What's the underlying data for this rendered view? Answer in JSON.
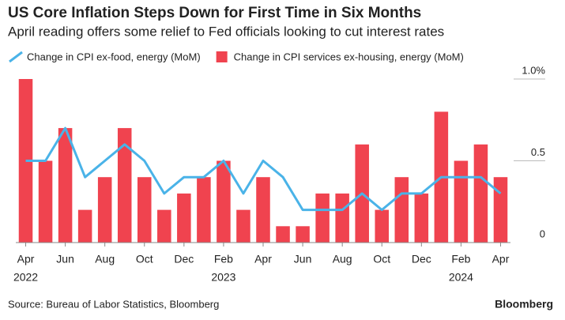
{
  "chart_data": {
    "type": "combo",
    "title": "US Core Inflation Steps Down for First Time in Six Months",
    "subtitle": "April reading offers some relief to Fed officials looking to cut interest rates",
    "source": "Source: Bureau of Labor Statistics, Bloomberg",
    "brand": "Bloomberg",
    "categories": [
      "Apr",
      null,
      "Jun",
      null,
      "Aug",
      null,
      "Oct",
      null,
      "Dec",
      null,
      "Feb",
      null,
      "Apr",
      null,
      "Jun",
      null,
      "Aug",
      null,
      "Oct",
      null,
      "Dec",
      null,
      "Feb",
      null,
      "Apr"
    ],
    "years": [
      "2022",
      null,
      null,
      null,
      null,
      null,
      null,
      null,
      null,
      null,
      "2023",
      null,
      null,
      null,
      null,
      null,
      null,
      null,
      null,
      null,
      null,
      null,
      "2024",
      null,
      null
    ],
    "series": [
      {
        "name": "Change in CPI ex-food, energy (MoM)",
        "type": "line",
        "color": "#4ab3e8",
        "values": [
          0.5,
          0.5,
          0.7,
          0.4,
          0.5,
          0.6,
          0.5,
          0.3,
          0.4,
          0.4,
          0.5,
          0.3,
          0.5,
          0.4,
          0.2,
          0.2,
          0.2,
          0.3,
          0.2,
          0.3,
          0.3,
          0.4,
          0.4,
          0.4,
          0.3
        ]
      },
      {
        "name": "Change in CPI services ex-housing, energy (MoM)",
        "type": "bar",
        "color": "#f0434f",
        "values": [
          1.0,
          0.5,
          0.7,
          0.2,
          0.4,
          0.7,
          0.4,
          0.2,
          0.3,
          0.4,
          0.5,
          0.2,
          0.4,
          0.1,
          0.1,
          0.3,
          0.3,
          0.6,
          0.2,
          0.4,
          0.3,
          0.8,
          0.5,
          0.6,
          0.4
        ]
      }
    ],
    "ylim": [
      0,
      1.0
    ],
    "yticks": [
      0,
      0.5,
      {
        "value": 1,
        "label": "1.0%"
      }
    ],
    "grid": false
  }
}
